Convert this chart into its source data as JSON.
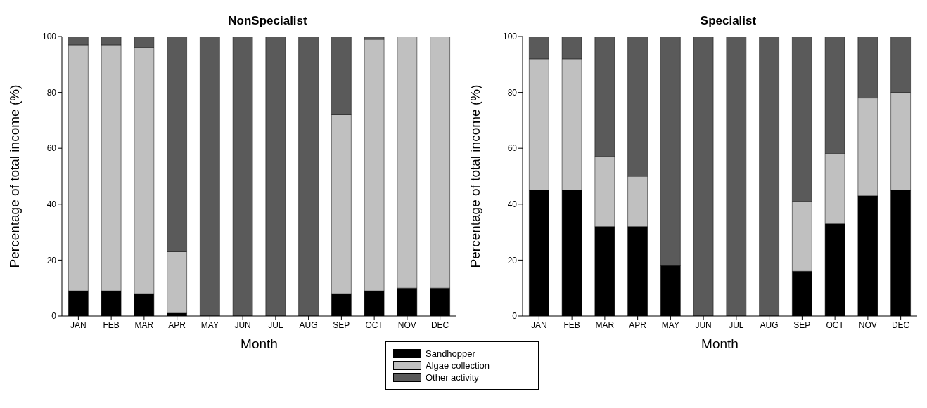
{
  "chart_data": [
    {
      "type": "bar",
      "title": "NonSpecialist",
      "xlabel": "Month",
      "ylabel": "Percentage of total income (%)",
      "categories": [
        "JAN",
        "FEB",
        "MAR",
        "APR",
        "MAY",
        "JUN",
        "JUL",
        "AUG",
        "SEP",
        "OCT",
        "NOV",
        "DEC"
      ],
      "stacked": true,
      "ylim": [
        0,
        100
      ],
      "yticks": [
        0,
        20,
        40,
        60,
        80,
        100
      ],
      "legend": "bottom right",
      "series": [
        {
          "name": "Sandhopper",
          "color": "#000000",
          "values": [
            9,
            9,
            8,
            1,
            0,
            0,
            0,
            0,
            8,
            9,
            10,
            10
          ]
        },
        {
          "name": "Algae collection",
          "color": "#c0c0c0",
          "values": [
            88,
            88,
            88,
            22,
            0,
            0,
            0,
            0,
            64,
            90,
            90,
            90
          ]
        },
        {
          "name": "Other activity",
          "color": "#5a5a5a",
          "values": [
            3,
            3,
            4,
            77,
            100,
            100,
            100,
            100,
            28,
            1,
            0,
            0
          ]
        }
      ]
    },
    {
      "type": "bar",
      "title": "Specialist",
      "xlabel": "Month",
      "ylabel": "Percentage of total income (%)",
      "categories": [
        "JAN",
        "FEB",
        "MAR",
        "APR",
        "MAY",
        "JUN",
        "JUL",
        "AUG",
        "SEP",
        "OCT",
        "NOV",
        "DEC"
      ],
      "stacked": true,
      "ylim": [
        0,
        100
      ],
      "yticks": [
        0,
        20,
        40,
        60,
        80,
        100
      ],
      "series": [
        {
          "color": "#000000",
          "values": [
            45,
            45,
            32,
            32,
            18,
            0,
            0,
            0,
            16,
            33,
            43,
            45
          ]
        },
        {
          "color": "#c0c0c0",
          "values": [
            47,
            47,
            25,
            18,
            0,
            0,
            0,
            0,
            25,
            25,
            35,
            35
          ]
        },
        {
          "color": "#5a5a5a",
          "values": [
            8,
            8,
            43,
            50,
            82,
            100,
            100,
            100,
            59,
            42,
            22,
            20
          ]
        }
      ]
    }
  ]
}
